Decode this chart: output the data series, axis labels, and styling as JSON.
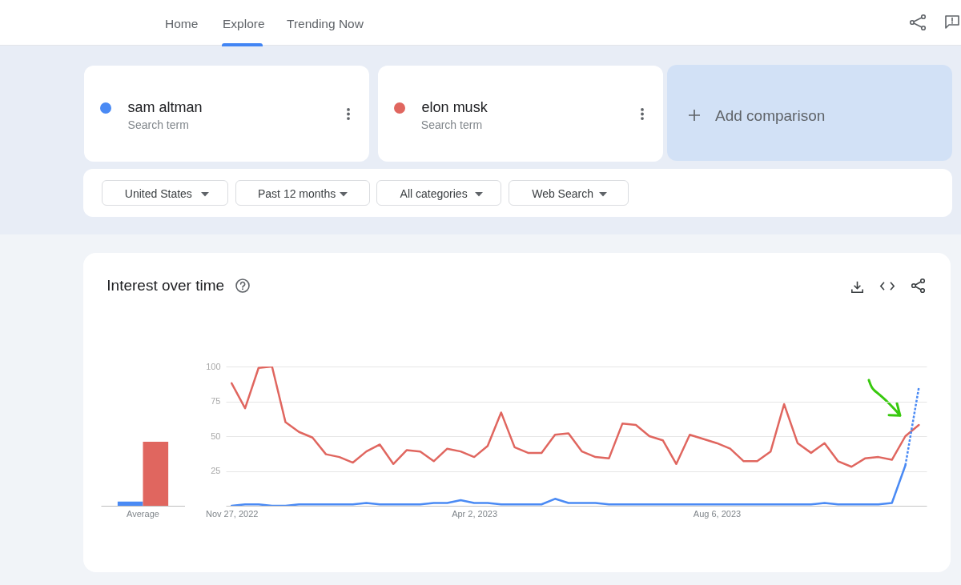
{
  "chart_data": [
    {
      "type": "bar",
      "title": "Interest over time",
      "categories": [
        "Average"
      ],
      "series": [
        {
          "color": "#4a8af4",
          "values": [
            3
          ]
        },
        {
          "color": "#e0665f",
          "values": [
            46
          ]
        }
      ],
      "ylim": [
        0,
        100
      ],
      "tick_labels": "x"
    },
    {
      "type": "line",
      "x": [
        "2022-11-27",
        "2022-12-04",
        "2022-12-11",
        "2022-12-18",
        "2022-12-25",
        "2023-01-01",
        "2023-01-08",
        "2023-01-15",
        "2023-01-22",
        "2023-01-29",
        "2023-02-05",
        "2023-02-12",
        "2023-02-19",
        "2023-02-26",
        "2023-03-05",
        "2023-03-12",
        "2023-03-19",
        "2023-03-26",
        "2023-04-02",
        "2023-04-09",
        "2023-04-16",
        "2023-04-23",
        "2023-04-30",
        "2023-05-07",
        "2023-05-14",
        "2023-05-21",
        "2023-05-28",
        "2023-06-04",
        "2023-06-11",
        "2023-06-18",
        "2023-06-25",
        "2023-07-02",
        "2023-07-09",
        "2023-07-16",
        "2023-07-23",
        "2023-07-30",
        "2023-08-06",
        "2023-08-13",
        "2023-08-20",
        "2023-08-27",
        "2023-09-03",
        "2023-09-10",
        "2023-09-17",
        "2023-09-24",
        "2023-10-01",
        "2023-10-08",
        "2023-10-15",
        "2023-10-22",
        "2023-10-29",
        "2023-11-05",
        "2023-11-12",
        "2023-11-19"
      ],
      "series": [
        {
          "name": "sam altman",
          "color": "#4a8af4",
          "values": [
            0,
            1,
            1,
            0,
            0,
            1,
            1,
            1,
            1,
            1,
            2,
            1,
            1,
            1,
            1,
            2,
            2,
            4,
            2,
            2,
            1,
            1,
            1,
            1,
            5,
            2,
            2,
            2,
            1,
            1,
            1,
            1,
            1,
            1,
            1,
            1,
            1,
            1,
            1,
            1,
            1,
            1,
            1,
            1,
            2,
            1,
            1,
            1,
            1,
            2,
            29,
            null
          ]
        },
        {
          "name": "elon musk",
          "color": "#e0665f",
          "values": [
            88,
            70,
            99,
            100,
            60,
            53,
            49,
            37,
            35,
            31,
            39,
            44,
            30,
            40,
            39,
            32,
            41,
            39,
            35,
            43,
            67,
            42,
            38,
            38,
            51,
            52,
            39,
            35,
            34,
            59,
            58,
            50,
            47,
            30,
            51,
            48,
            45,
            41,
            32,
            32,
            39,
            73,
            45,
            38,
            45,
            32,
            28,
            34,
            35,
            33,
            50,
            58
          ]
        },
        {
          "color": "#4a8af4",
          "x": [
            "2023-11-12",
            "2023-11-19"
          ],
          "values": [
            29,
            85
          ],
          "line_style": "dotted"
        }
      ],
      "xlim": [
        "2022-11-24",
        "2023-11-23"
      ],
      "xticks": [
        {
          "value": "2022-11-27",
          "label": "Nov 27, 2022"
        },
        {
          "value": "2023-04-02",
          "label": "Apr 2, 2023"
        },
        {
          "value": "2023-08-06",
          "label": "Aug 6, 2023"
        }
      ],
      "ylim": [
        0,
        100
      ],
      "yticks": [
        25,
        50,
        75,
        100
      ],
      "grid": "y",
      "legend": "top",
      "annotations": [
        "Home",
        "Explore",
        "Trending Now",
        "Search term",
        "Search term",
        "Add comparison",
        "United States",
        "Past 12 months",
        "All categories",
        "Web Search"
      ]
    }
  ]
}
